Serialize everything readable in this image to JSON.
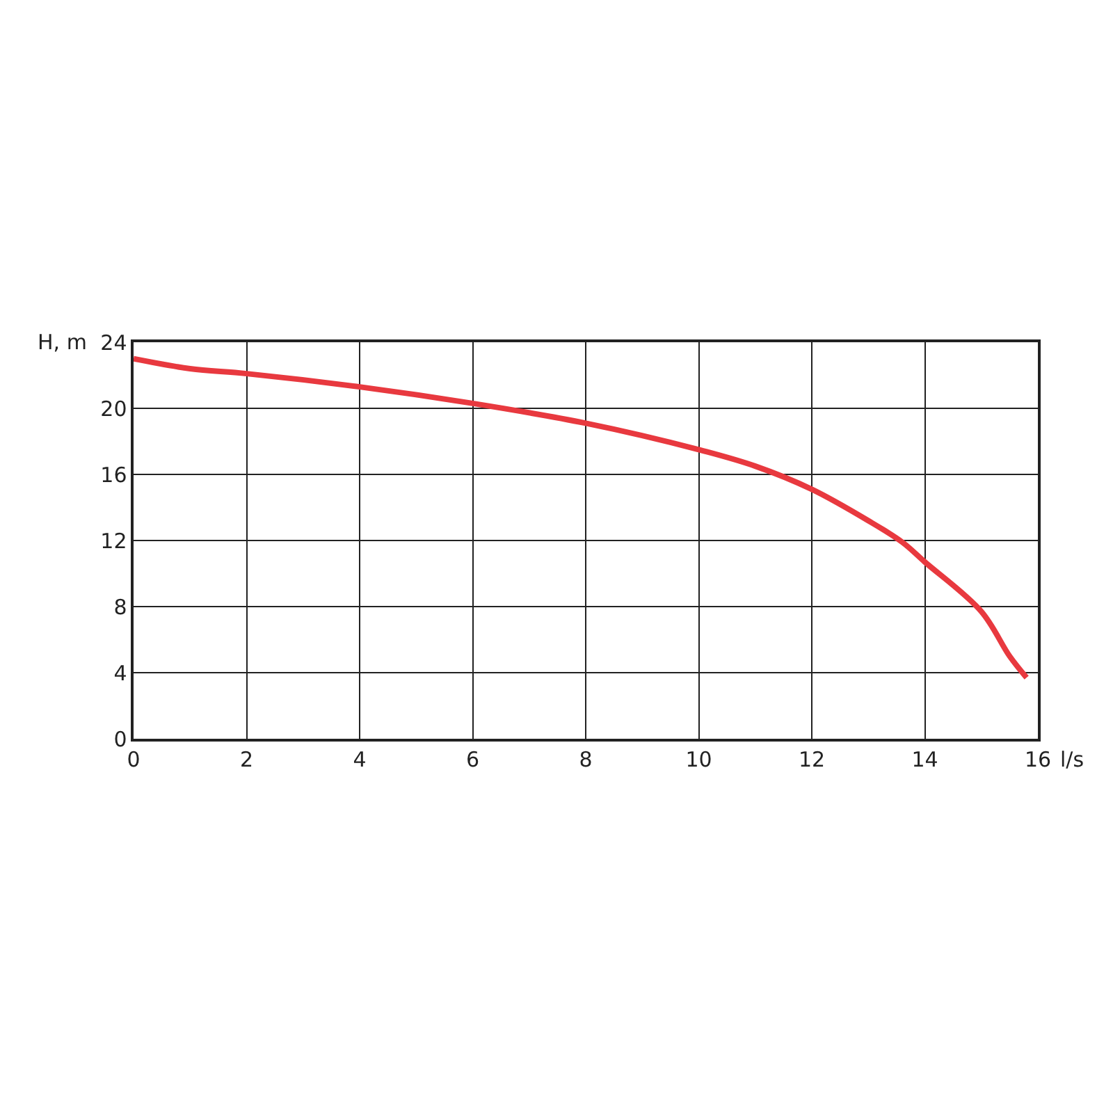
{
  "chart_data": {
    "type": "line",
    "xlabel": "l/s",
    "ylabel": "H, m",
    "x": [
      0,
      1,
      2,
      4,
      6,
      8,
      10,
      11,
      12,
      13,
      13.6,
      14,
      15,
      15.5,
      15.8
    ],
    "series": [
      {
        "color": "#e8393f",
        "values": [
          23.0,
          22.4,
          22.1,
          21.3,
          20.3,
          19.1,
          17.5,
          16.5,
          15.1,
          13.2,
          11.9,
          10.7,
          7.7,
          5.0,
          3.7
        ]
      }
    ],
    "xlim": [
      0,
      16
    ],
    "xticks": [
      0,
      2,
      4,
      6,
      8,
      10,
      12,
      14,
      16
    ],
    "ylim": [
      0,
      24
    ],
    "yticks": [
      0,
      4,
      8,
      12,
      16,
      20,
      24
    ],
    "grid": true,
    "marker": "none",
    "line_style": "solid"
  }
}
